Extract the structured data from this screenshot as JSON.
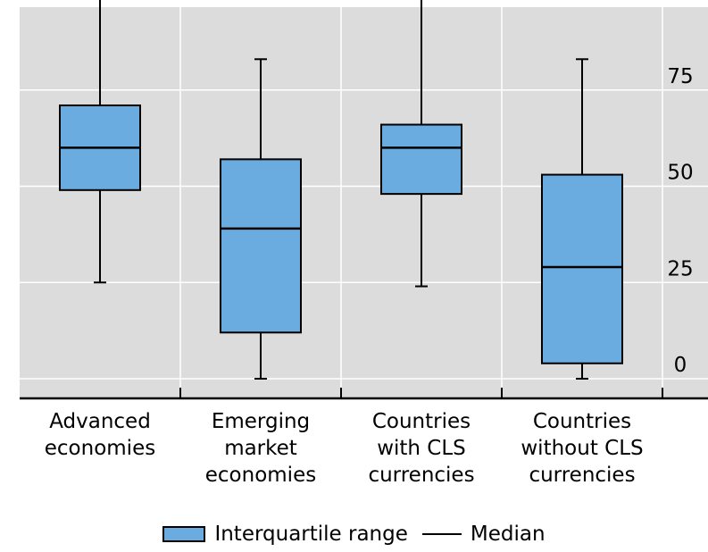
{
  "chart_data": {
    "type": "boxplot",
    "title": "",
    "xlabel": "",
    "ylabel": "",
    "ylim": [
      -3,
      100
    ],
    "yticks": [
      0,
      25,
      50,
      75
    ],
    "grid": true,
    "legend_position": "bottom",
    "categories": [
      "Advanced\neconomies",
      "Emerging\nmarket\neconomies",
      "Countries\nwith CLS\ncurrencies",
      "Countries\nwithout CLS\ncurrencies"
    ],
    "boxes": [
      {
        "whisker_low": 25,
        "q1": 49,
        "median": 60,
        "q3": 71,
        "whisker_high": 100
      },
      {
        "whisker_low": 0,
        "q1": 12,
        "median": 39,
        "q3": 57,
        "whisker_high": 83
      },
      {
        "whisker_low": 24,
        "q1": 48,
        "median": 60,
        "q3": 66,
        "whisker_high": 100
      },
      {
        "whisker_low": 0,
        "q1": 4,
        "median": 29,
        "q3": 53,
        "whisker_high": 83
      }
    ],
    "legend": {
      "box_label": "Interquartile range",
      "line_label": "Median"
    },
    "colors": {
      "box": "#6aabe0",
      "plot_bg": "#dcdcdc",
      "grid": "#ffffff",
      "axis": "#000000"
    }
  }
}
